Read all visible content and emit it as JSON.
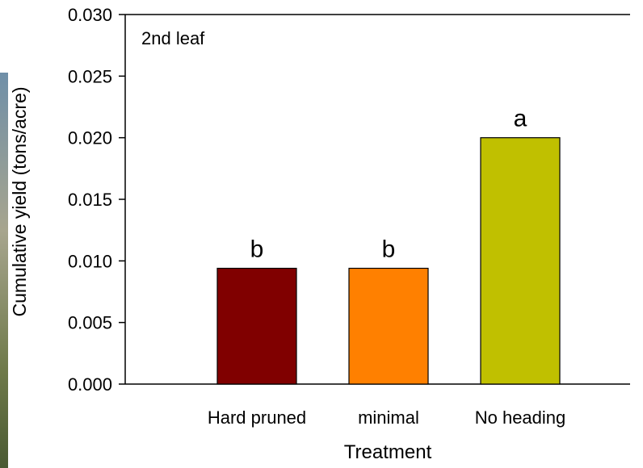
{
  "chart_data": {
    "type": "bar",
    "panel_label": "2nd leaf",
    "x_label": "Treatment",
    "y_label": "Cumulative yield (tons/acre)",
    "categories": [
      "Hard pruned",
      "minimal",
      "No heading"
    ],
    "values": [
      0.0094,
      0.0094,
      0.02
    ],
    "colors": [
      "#800000",
      "#ff8000",
      "#c0c000"
    ],
    "bar_letters": [
      "b",
      "b",
      "a"
    ],
    "ylim": [
      0,
      0.03
    ],
    "yticks": [
      {
        "value": 0,
        "label": "0.000"
      },
      {
        "value": 0.005,
        "label": "0.005"
      },
      {
        "value": 0.01,
        "label": "0.010"
      },
      {
        "value": 0.015,
        "label": "0.015"
      },
      {
        "value": 0.02,
        "label": "0.020"
      },
      {
        "value": 0.025,
        "label": "0.025"
      },
      {
        "value": 0.03,
        "label": "0.030"
      }
    ]
  }
}
